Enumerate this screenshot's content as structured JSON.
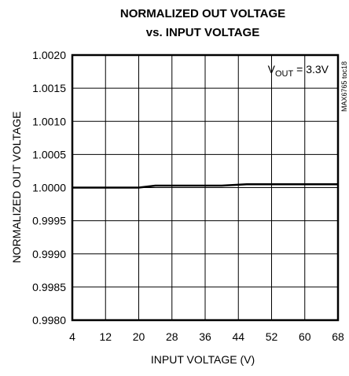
{
  "chart_data": {
    "type": "line",
    "title": [
      "NORMALIZED OUT VOLTAGE",
      "vs. INPUT VOLTAGE"
    ],
    "xlabel": "INPUT VOLTAGE (V)",
    "ylabel": "NORMALIZED OUT VOLTAGE",
    "annotation": {
      "main": "V",
      "sub": "OUT",
      "rest": " = 3.3V"
    },
    "side_label": "MAX6765 toc18",
    "x": [
      4,
      20,
      24,
      40,
      46,
      68
    ],
    "values": [
      1.0,
      1.0,
      1.00003,
      1.00003,
      1.00005,
      1.00005
    ],
    "color": "#000000",
    "xlim": [
      4,
      68
    ],
    "xticks": [
      4,
      12,
      20,
      28,
      36,
      44,
      52,
      60,
      68
    ],
    "ylim": [
      0.998,
      1.002
    ],
    "yticks": [
      {
        "value": 0.998,
        "label": "0.9980"
      },
      0.9985,
      {
        "value": 0.999,
        "label": "0.9990"
      },
      0.9995,
      {
        "value": 1.0,
        "label": "1.0000"
      },
      1.0005,
      {
        "value": 1.001,
        "label": "1.0010"
      },
      1.0015,
      {
        "value": 1.002,
        "label": "1.0020"
      }
    ],
    "grid": true
  }
}
